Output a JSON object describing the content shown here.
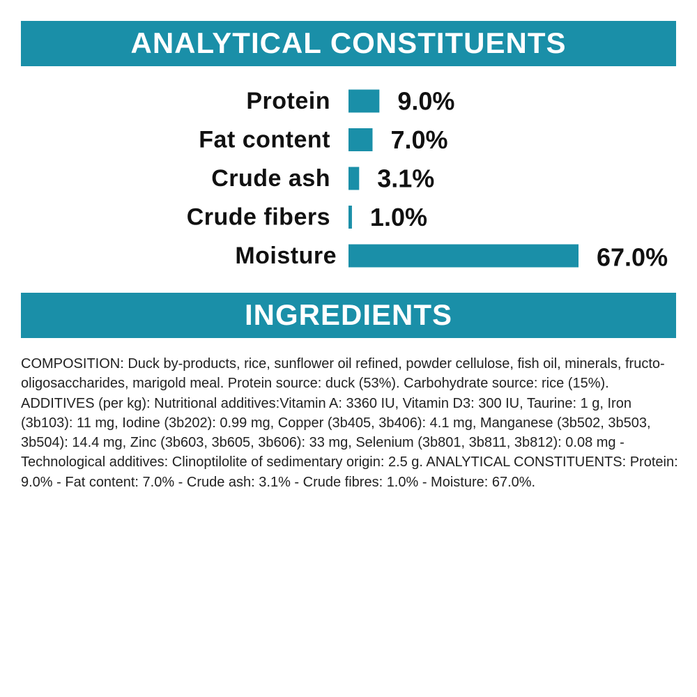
{
  "chart_data": {
    "type": "bar",
    "orientation": "horizontal",
    "title": "ANALYTICAL CONSTITUENTS",
    "categories": [
      "Protein",
      "Fat content",
      "Crude ash",
      "Crude fibers",
      "Moisture"
    ],
    "values": [
      9.0,
      7.0,
      3.1,
      1.0,
      67.0
    ],
    "value_labels": [
      "9.0%",
      "7.0%",
      "3.1%",
      "1.0%",
      "67.0%"
    ],
    "color": "#1a8fa8"
  },
  "ingredients": {
    "title": "INGREDIENTS",
    "text": "COMPOSITION: Duck by-products, rice, sunflower oil refined, powder cellulose, fish oil, minerals, fructo-oligosaccharides, marigold meal. Protein source: duck (53%). Carbohydrate source: rice (15%). ADDITIVES (per kg): Nutritional additives:Vitamin A: 3360 IU, Vitamin D3: 300 IU, Taurine: 1 g, Iron (3b103): 11 mg, Iodine (3b202): 0.99 mg, Copper (3b405, 3b406): 4.1 mg, Manganese (3b502, 3b503, 3b504): 14.4 mg, Zinc (3b603, 3b605, 3b606): 33 mg, Selenium (3b801, 3b811, 3b812): 0.08 mg - Technological additives: Clinoptilolite of sedimentary origin: 2.5 g. ANALYTICAL CONSTITUENTS: Protein: 9.0% - Fat content: 7.0% - Crude ash: 3.1% - Crude fibres: 1.0% - Moisture: 67.0%."
  }
}
